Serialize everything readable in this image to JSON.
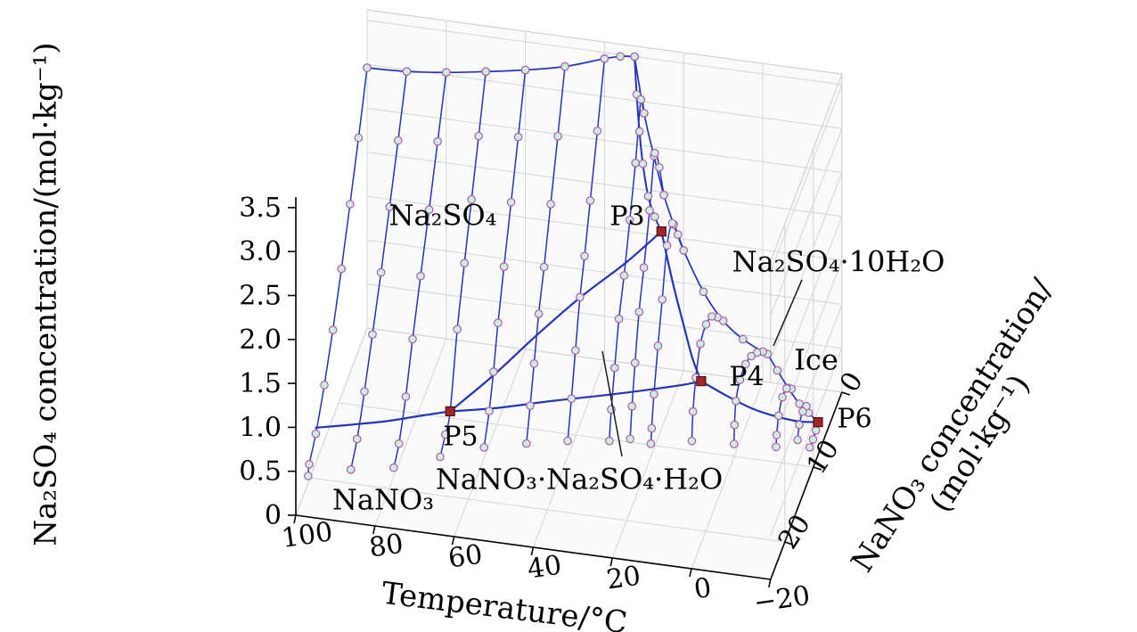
{
  "chart_data": {
    "type": "line",
    "subtype": "3d-solubility-phase-diagram",
    "title": "",
    "legend": "none",
    "grid": "on",
    "axes": {
      "x": {
        "title": "Temperature/°C",
        "tick_values": [
          100,
          80,
          60,
          40,
          20,
          0,
          -20
        ],
        "tick_labels": [
          "100",
          "80",
          "60",
          "40",
          "20",
          "0",
          "−20"
        ],
        "range": [
          100,
          -20
        ]
      },
      "y": {
        "title": "NaNO₃ concentration/(mol·kg⁻¹)",
        "title_lines": [
          "NaNO₃ concentration/",
          "(mol·kg⁻¹)"
        ],
        "tick_values": [
          0,
          10,
          20
        ],
        "tick_labels": [
          "0",
          "10",
          "20"
        ],
        "range": [
          0,
          25
        ]
      },
      "z": {
        "title": "Na₂SO₄ concentration/(mol·kg⁻¹)",
        "tick_values": [
          0,
          0.5,
          1,
          1.5,
          2,
          2.5,
          3,
          3.5
        ],
        "tick_labels": [
          "0",
          "0.5",
          "1.0",
          "1.5",
          "2.0",
          "2.5",
          "3.0",
          "3.5"
        ],
        "range": [
          0,
          3.5
        ]
      }
    },
    "colors": {
      "curve_blue": "#2535b6",
      "marker_fill": "#cdeedd",
      "marker_edge": "#b05ab0",
      "invariant_red": "#a1262a",
      "invariant_edge": "#541010",
      "grid_gray": "#d4d4d4",
      "pane_fill": "#fafafa",
      "pane_edge": "#c9c9c9",
      "axis_black": "#000000"
    },
    "isotherms": [
      {
        "t": 100,
        "points": [
          [
            100,
            0,
            2.96
          ],
          [
            100,
            3,
            2.42
          ],
          [
            100,
            6,
            1.92
          ],
          [
            100,
            9,
            1.44
          ],
          [
            100,
            12,
            1.0
          ],
          [
            100,
            15,
            0.63
          ],
          [
            100,
            18,
            0.33
          ],
          [
            100,
            20.3,
            0.18
          ],
          [
            100,
            20.7,
            0.08
          ]
        ]
      },
      {
        "t": 90,
        "points": [
          [
            90,
            0,
            2.98
          ],
          [
            90,
            3,
            2.45
          ],
          [
            90,
            6,
            1.95
          ],
          [
            90,
            9,
            1.46
          ],
          [
            90,
            12,
            1.01
          ],
          [
            90,
            14.8,
            0.6
          ],
          [
            90,
            17.4,
            0.28
          ],
          [
            90,
            19.6,
            0.12
          ]
        ]
      },
      {
        "t": 80,
        "points": [
          [
            80,
            0,
            3.03
          ],
          [
            80,
            3,
            2.5
          ],
          [
            80,
            6,
            1.98
          ],
          [
            80,
            9,
            1.48
          ],
          [
            80,
            11.8,
            1.0
          ],
          [
            80,
            14.2,
            0.55
          ],
          [
            80,
            16.6,
            0.22
          ],
          [
            80,
            18.4,
            0.1
          ]
        ]
      },
      {
        "t": 70,
        "points": [
          [
            70,
            0,
            3.1
          ],
          [
            70,
            2.5,
            2.58
          ],
          [
            70,
            5,
            2.07
          ],
          [
            70,
            7.5,
            1.56
          ],
          [
            70,
            10,
            1.02
          ],
          [
            70,
            12.5,
            0.3
          ],
          [
            70,
            14.2,
            0.18
          ],
          [
            70,
            16,
            0.08
          ]
        ]
      },
      {
        "t": 60,
        "points": [
          [
            60,
            0,
            3.18
          ],
          [
            60,
            2.5,
            2.63
          ],
          [
            60,
            5,
            2.1
          ],
          [
            60,
            7.5,
            1.58
          ],
          [
            60,
            9.6,
            1.12
          ],
          [
            60,
            11.2,
            0.7
          ],
          [
            60,
            12.7,
            0.38
          ],
          [
            60,
            14.5,
            0.12
          ]
        ]
      },
      {
        "t": 50,
        "points": [
          [
            50,
            0,
            3.28
          ],
          [
            50,
            2.5,
            2.7
          ],
          [
            50,
            5,
            2.14
          ],
          [
            50,
            7.3,
            1.62
          ],
          [
            50,
            9.2,
            1.25
          ],
          [
            50,
            10.8,
            0.82
          ],
          [
            50,
            12.2,
            0.46
          ],
          [
            50,
            13.5,
            0.14
          ]
        ]
      },
      {
        "t": 40,
        "points": [
          [
            40,
            0,
            3.43
          ],
          [
            40,
            2.5,
            2.82
          ],
          [
            40,
            5,
            2.24
          ],
          [
            40,
            7,
            1.78
          ],
          [
            40,
            8.6,
            1.45
          ],
          [
            40,
            10.2,
            0.98
          ],
          [
            40,
            11.6,
            0.55
          ],
          [
            40,
            12.9,
            0.18
          ]
        ]
      },
      {
        "t": 30,
        "points": [
          [
            30,
            0,
            2.87
          ],
          [
            30,
            1.1,
            3.12
          ],
          [
            30,
            3,
            2.56
          ],
          [
            30,
            5,
            2.08
          ],
          [
            30,
            7,
            1.62
          ],
          [
            30,
            8.8,
            1.28
          ],
          [
            30,
            10.3,
            0.85
          ],
          [
            30,
            11.5,
            0.48
          ],
          [
            30,
            12.2,
            0.18
          ]
        ]
      },
      {
        "t": 25,
        "points": [
          [
            25,
            0,
            1.97
          ],
          [
            25,
            1.6,
            2.42
          ],
          [
            25,
            3.2,
            2.72
          ],
          [
            25,
            5,
            2.22
          ],
          [
            25,
            7,
            1.74
          ],
          [
            25,
            8.7,
            1.38
          ],
          [
            25,
            10.1,
            0.92
          ],
          [
            25,
            11.2,
            0.52
          ],
          [
            25,
            11.8,
            0.2
          ]
        ]
      },
      {
        "t": 20,
        "points": [
          [
            20,
            0,
            1.37
          ],
          [
            20,
            2,
            1.72
          ],
          [
            20,
            4,
            2.02
          ],
          [
            20,
            5.8,
            1.92
          ],
          [
            20,
            7.5,
            1.45
          ],
          [
            20,
            9,
            1.05
          ],
          [
            20,
            10.4,
            0.62
          ],
          [
            20,
            11.2,
            0.3
          ],
          [
            20,
            11.5,
            0.15
          ]
        ]
      },
      {
        "t": 10,
        "points": [
          [
            10,
            0,
            0.63
          ],
          [
            10,
            2,
            0.84
          ],
          [
            10,
            4,
            1.02
          ],
          [
            10,
            6,
            1.1
          ],
          [
            10,
            8,
            1.05
          ],
          [
            10,
            9.6,
            0.8
          ],
          [
            10,
            10.6,
            0.5
          ],
          [
            10,
            11,
            0.2
          ]
        ]
      },
      {
        "t": 0,
        "points": [
          [
            0,
            0,
            0.34
          ],
          [
            0,
            2,
            0.5
          ],
          [
            0,
            4,
            0.63
          ],
          [
            0,
            6,
            0.71
          ],
          [
            0,
            8,
            0.7
          ],
          [
            0,
            9.4,
            0.58
          ],
          [
            0,
            9.9,
            0.35
          ],
          [
            0,
            10.1,
            0.15
          ]
        ]
      },
      {
        "t": -10,
        "points": [
          [
            -10,
            3.8,
            0.3
          ],
          [
            -10,
            5.5,
            0.45
          ],
          [
            -10,
            7,
            0.48
          ],
          [
            -10,
            8.3,
            0.38
          ],
          [
            -10,
            9,
            0.22
          ],
          [
            -10,
            9.2,
            0.1
          ]
        ]
      },
      {
        "t": -15,
        "points": [
          [
            -15,
            5.5,
            0.28
          ],
          [
            -15,
            6.8,
            0.33
          ],
          [
            -15,
            8,
            0.28
          ],
          [
            -15,
            8.6,
            0.16
          ]
        ]
      }
    ],
    "boundaries": [
      {
        "name": "na2so4-solubility-edge-n0",
        "markers": true,
        "width": 1.7,
        "points": [
          [
            100,
            0,
            2.96
          ],
          [
            90,
            0,
            2.98
          ],
          [
            80,
            0,
            3.03
          ],
          [
            70,
            0,
            3.1
          ],
          [
            60,
            0,
            3.18
          ],
          [
            50,
            0,
            3.28
          ],
          [
            40,
            0,
            3.43
          ],
          [
            36,
            0,
            3.48
          ],
          [
            32.4,
            0,
            3.5
          ]
        ]
      },
      {
        "name": "mirabilite-solubility-edge-n0",
        "markers": true,
        "width": 1.7,
        "points": [
          [
            32.4,
            0,
            3.5
          ],
          [
            30,
            0,
            2.87
          ],
          [
            27.5,
            0,
            2.4
          ],
          [
            25,
            0,
            1.97
          ],
          [
            22.5,
            0,
            1.65
          ],
          [
            20,
            0,
            1.37
          ],
          [
            15,
            0,
            0.93
          ],
          [
            10,
            0,
            0.63
          ],
          [
            5,
            0,
            0.45
          ],
          [
            0,
            0,
            0.34
          ],
          [
            -1.2,
            0,
            0.32
          ]
        ]
      },
      {
        "name": "thenardite-mirabilite-transition",
        "markers": true,
        "width": 2,
        "points": [
          [
            32.4,
            0,
            3.5
          ],
          [
            31,
            1.2,
            3.18
          ],
          [
            29.5,
            2.3,
            2.86
          ],
          [
            28,
            3.2,
            2.58
          ],
          [
            26,
            4.1,
            2.3
          ],
          [
            24,
            4.6,
            2.12
          ],
          [
            22,
            5,
            2.0
          ]
        ]
      },
      {
        "name": "na2so4-darapskite-cotectic",
        "markers": false,
        "width": 2.2,
        "points": [
          [
            22,
            5,
            2.0
          ],
          [
            30,
            6.5,
            1.72
          ],
          [
            40,
            8.2,
            1.42
          ],
          [
            50,
            9.8,
            1.06
          ],
          [
            60,
            11.2,
            0.66
          ],
          [
            70,
            12.5,
            0.3
          ]
        ]
      },
      {
        "name": "darapskite-mirabilite-cotectic",
        "markers": false,
        "width": 2.2,
        "points": [
          [
            22,
            5,
            2.0
          ],
          [
            18,
            6.6,
            1.58
          ],
          [
            14,
            8.1,
            1.22
          ],
          [
            11,
            9.4,
            1.0
          ],
          [
            8,
            10.5,
            0.85
          ]
        ]
      },
      {
        "name": "na2so4-nano3-cotectic",
        "markers": false,
        "width": 2.2,
        "points": [
          [
            100,
            18,
            0.4
          ],
          [
            92,
            16.8,
            0.38
          ],
          [
            84,
            15.4,
            0.35
          ],
          [
            77,
            14,
            0.33
          ],
          [
            70,
            12.5,
            0.3
          ]
        ]
      },
      {
        "name": "darapskite-nano3-cotectic",
        "markers": false,
        "width": 2.2,
        "points": [
          [
            70,
            12.5,
            0.3
          ],
          [
            58,
            12.6,
            0.42
          ],
          [
            45,
            12.3,
            0.55
          ],
          [
            32,
            11.9,
            0.66
          ],
          [
            20,
            11.4,
            0.76
          ],
          [
            12,
            10.9,
            0.82
          ],
          [
            8,
            10.5,
            0.85
          ]
        ]
      },
      {
        "name": "mirabilite-nano3-cotectic",
        "markers": false,
        "width": 2.2,
        "points": [
          [
            8,
            10.5,
            0.85
          ],
          [
            2,
            10,
            0.68
          ],
          [
            -4,
            9.4,
            0.52
          ],
          [
            -10,
            8.7,
            0.4
          ],
          [
            -15,
            7.9,
            0.31
          ],
          [
            -19,
            7,
            0.25
          ]
        ]
      },
      {
        "name": "ice-mirabilite-boundary",
        "markers": true,
        "width": 1.7,
        "points": [
          [
            -1.2,
            0,
            0.32
          ],
          [
            -5,
            1.8,
            0.31
          ],
          [
            -9,
            3.6,
            0.29
          ],
          [
            -13,
            5.2,
            0.27
          ],
          [
            -16,
            6.1,
            0.26
          ],
          [
            -19,
            7,
            0.25
          ]
        ]
      },
      {
        "name": "ice-nano3-boundary",
        "markers": true,
        "width": 1.7,
        "points": [
          [
            -17.5,
            7.8,
            0.02
          ],
          [
            -18.2,
            7.6,
            0.1
          ],
          [
            -18.7,
            7.3,
            0.18
          ],
          [
            -19,
            7,
            0.25
          ]
        ]
      }
    ],
    "invariant_points": [
      {
        "label": "P3",
        "t": 22,
        "n": 5,
        "c": 2.0
      },
      {
        "label": "P4",
        "t": 8,
        "n": 10.5,
        "c": 0.85
      },
      {
        "label": "P5",
        "t": 70,
        "n": 12.5,
        "c": 0.3
      },
      {
        "label": "P6",
        "t": -19,
        "n": 7,
        "c": 0.25
      }
    ],
    "region_labels": [
      {
        "text": "Na₂SO₄"
      },
      {
        "text": "Na₂SO₄·10H₂O"
      },
      {
        "text": "Ice"
      },
      {
        "text": "NaNO₃"
      },
      {
        "text": "NaNO₃·Na₂SO₄·H₂O"
      }
    ]
  }
}
